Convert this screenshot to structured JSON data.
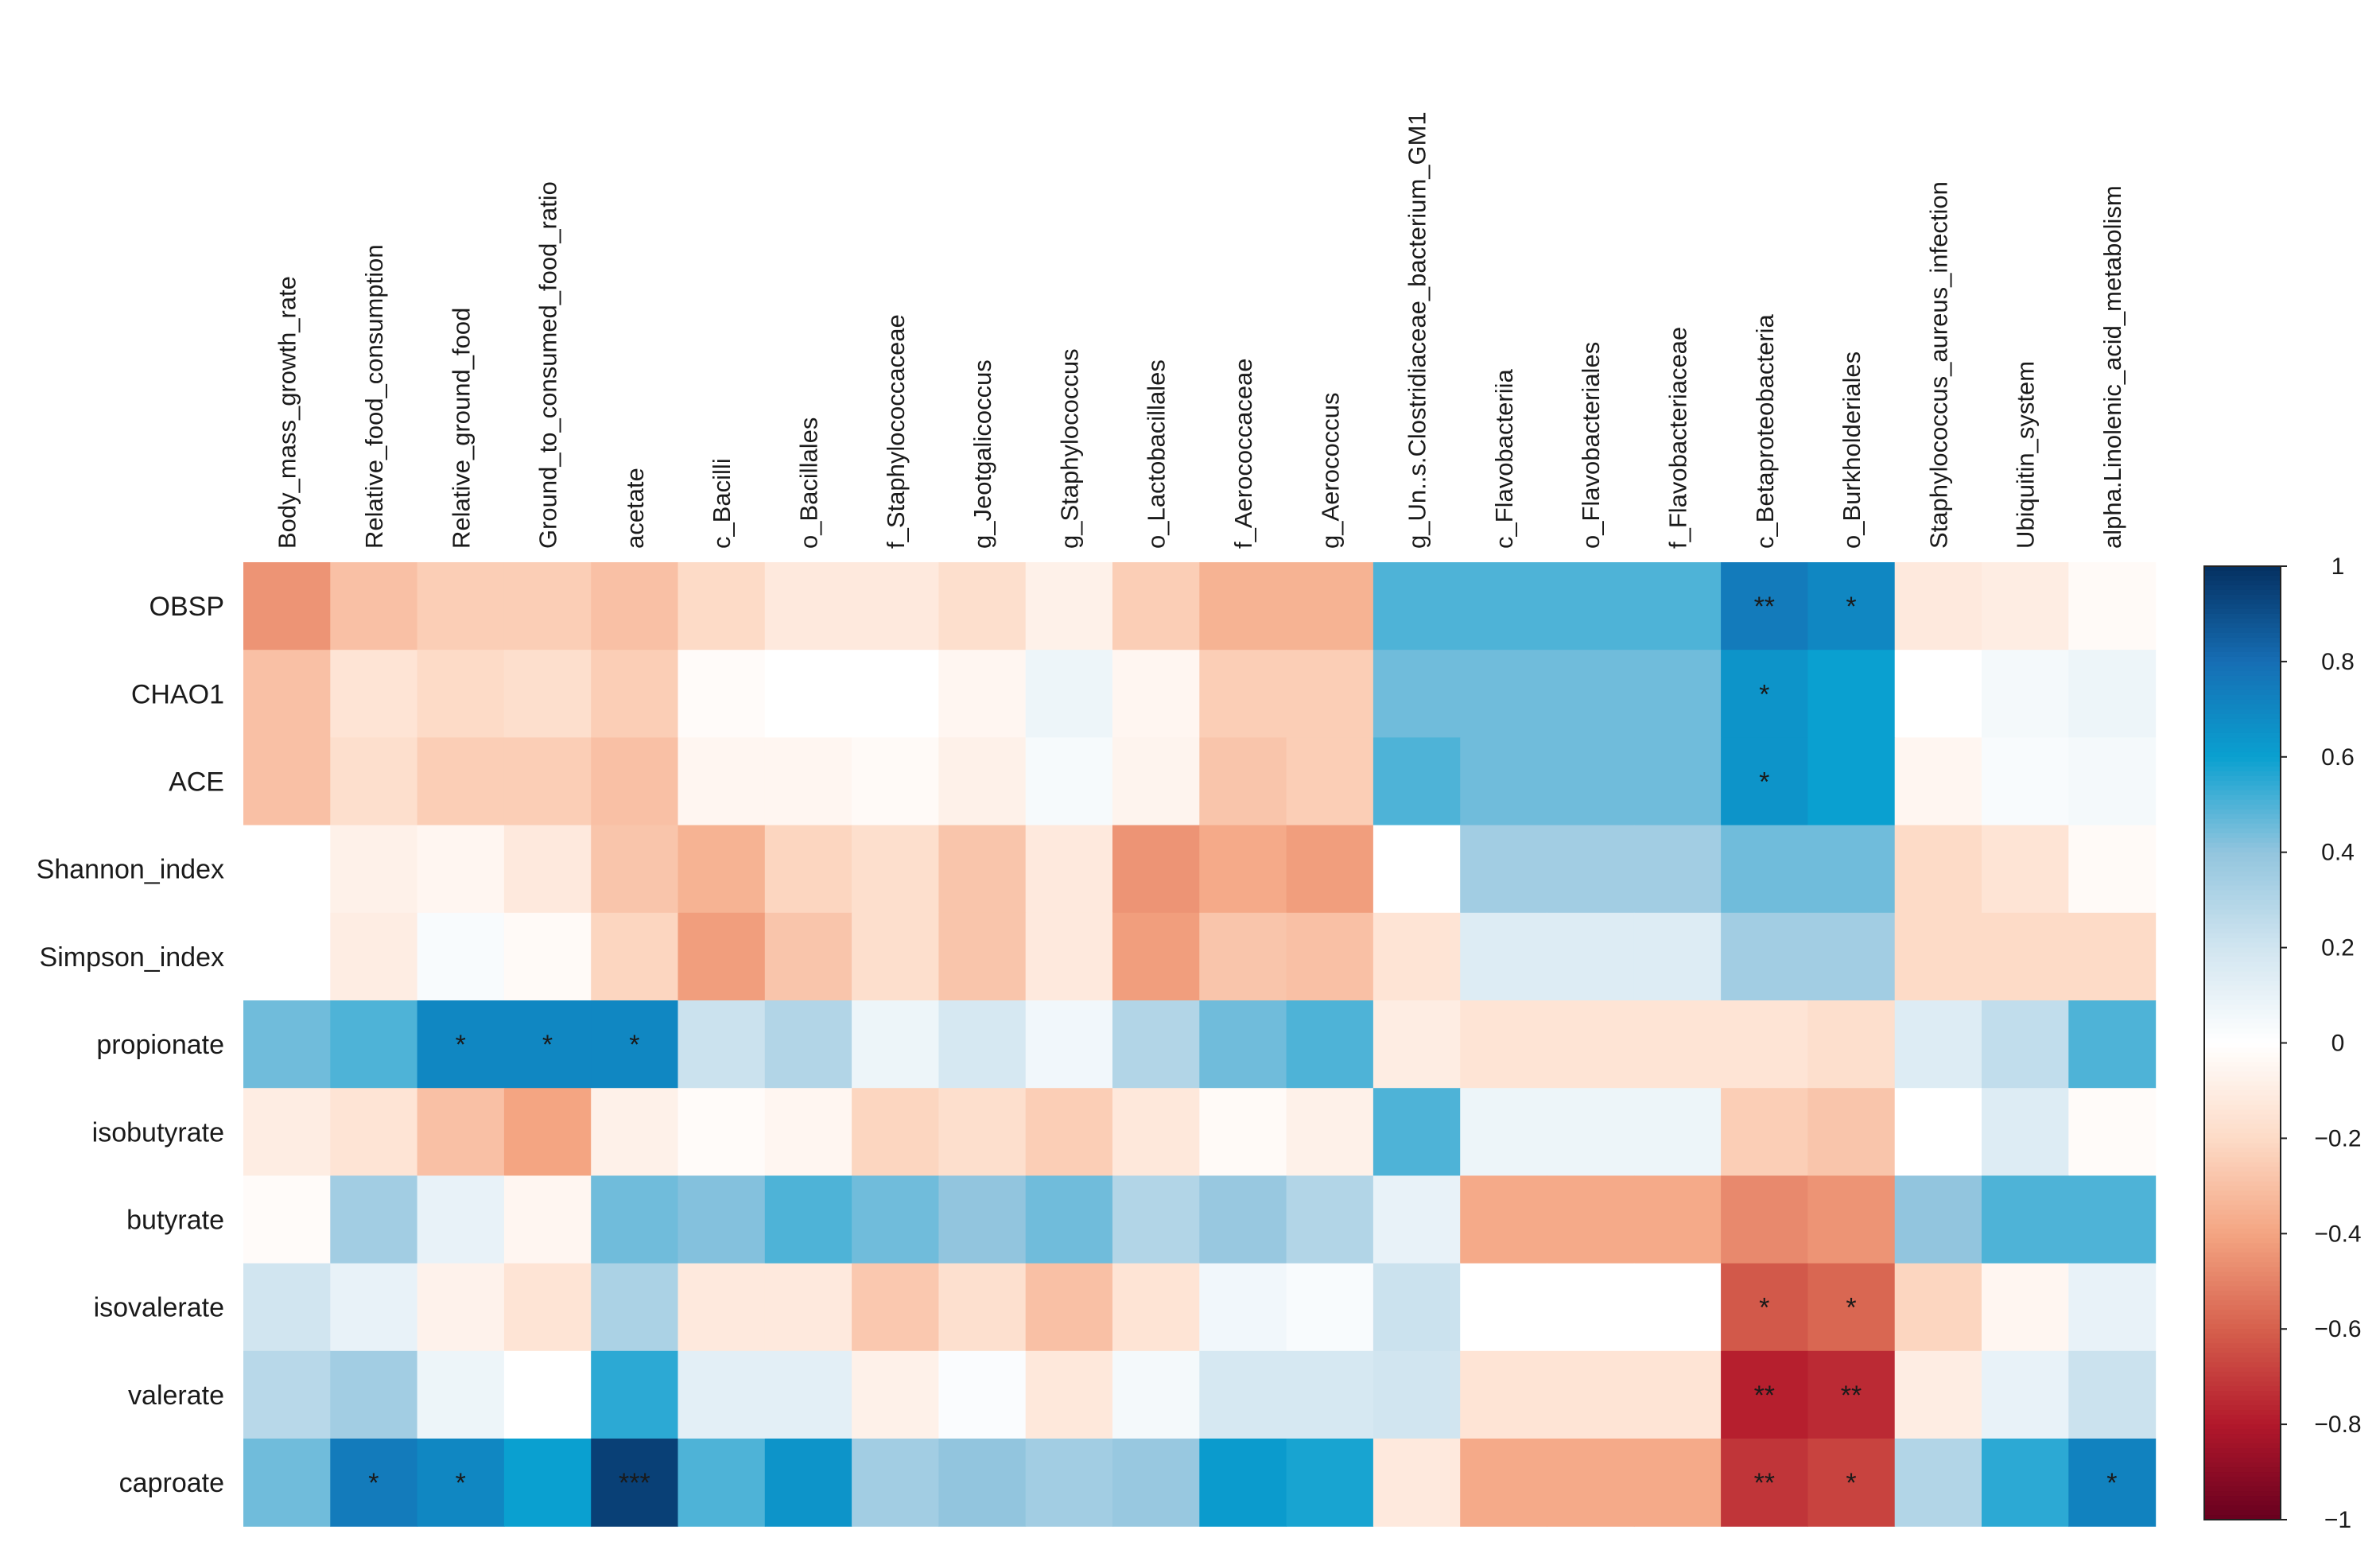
{
  "chart_data": {
    "type": "heatmap",
    "title": "",
    "columns": [
      "Body_mass_growth_rate",
      "Relative_food_consumption",
      "Relative_ground_food",
      "Ground_to_consumed_food_ratio",
      "acetate",
      "c_Bacilli",
      "o_Bacillales",
      "f_Staphylococcaceae",
      "g_Jeotgalicoccus",
      "g_Staphylococcus",
      "o_Lactobacillales",
      "f_Aerococcaceae",
      "g_Aerococcus",
      "g_Un..s.Clostridiaceae_bacterium_GM1",
      "c_Flavobacteriia",
      "o_Flavobacteriales",
      "f_Flavobacteriaceae",
      "c_Betaproteobacteria",
      "o_Burkholderiales",
      "Staphylococcus_aureus_infection",
      "Ubiquitin_system",
      "alpha.Linolenic_acid_metabolism"
    ],
    "rows": [
      "OBSP",
      "CHAO1",
      "ACE",
      "Shannon_index",
      "Simpson_index",
      "propionate",
      "isobutyrate",
      "butyrate",
      "isovalerate",
      "valerate",
      "caproate"
    ],
    "values": [
      [
        -0.45,
        -0.3,
        -0.25,
        -0.25,
        -0.3,
        -0.2,
        -0.12,
        -0.12,
        -0.18,
        -0.08,
        -0.25,
        -0.35,
        -0.35,
        0.5,
        0.5,
        0.5,
        0.5,
        0.75,
        0.7,
        -0.12,
        -0.1,
        -0.03
      ],
      [
        -0.3,
        -0.15,
        -0.2,
        -0.18,
        -0.25,
        -0.02,
        0.0,
        0.0,
        -0.05,
        0.08,
        -0.05,
        -0.25,
        -0.25,
        0.45,
        0.45,
        0.45,
        0.45,
        0.65,
        0.6,
        0.0,
        0.05,
        0.08
      ],
      [
        -0.3,
        -0.18,
        -0.25,
        -0.25,
        -0.3,
        -0.05,
        -0.05,
        -0.03,
        -0.08,
        0.04,
        -0.06,
        -0.28,
        -0.25,
        0.5,
        0.45,
        0.45,
        0.45,
        0.65,
        0.6,
        -0.05,
        0.03,
        0.05
      ],
      [
        0.0,
        -0.08,
        -0.05,
        -0.12,
        -0.28,
        -0.35,
        -0.22,
        -0.18,
        -0.28,
        -0.12,
        -0.45,
        -0.38,
        -0.42,
        0.0,
        0.35,
        0.35,
        0.35,
        0.45,
        0.45,
        -0.2,
        -0.15,
        -0.03
      ],
      [
        0.0,
        -0.1,
        0.03,
        -0.03,
        -0.22,
        -0.42,
        -0.28,
        -0.18,
        -0.28,
        -0.12,
        -0.42,
        -0.28,
        -0.3,
        -0.15,
        0.15,
        0.15,
        0.15,
        0.35,
        0.35,
        -0.2,
        -0.2,
        -0.2
      ],
      [
        0.45,
        0.5,
        0.7,
        0.7,
        0.7,
        0.22,
        0.3,
        0.08,
        0.18,
        0.06,
        0.3,
        0.45,
        0.5,
        -0.1,
        -0.15,
        -0.15,
        -0.15,
        -0.15,
        -0.18,
        0.15,
        0.25,
        0.5
      ],
      [
        -0.1,
        -0.15,
        -0.3,
        -0.4,
        -0.08,
        -0.02,
        -0.05,
        -0.22,
        -0.18,
        -0.25,
        -0.13,
        -0.03,
        -0.08,
        0.5,
        0.08,
        0.08,
        0.08,
        -0.25,
        -0.28,
        0.0,
        0.15,
        -0.02
      ],
      [
        -0.02,
        0.35,
        0.1,
        -0.05,
        0.45,
        0.42,
        0.5,
        0.45,
        0.4,
        0.45,
        0.3,
        0.38,
        0.3,
        0.1,
        -0.38,
        -0.38,
        -0.38,
        -0.48,
        -0.45,
        0.4,
        0.5,
        0.5
      ],
      [
        0.2,
        0.1,
        -0.07,
        -0.15,
        0.32,
        -0.12,
        -0.12,
        -0.27,
        -0.17,
        -0.3,
        -0.15,
        0.06,
        0.03,
        0.22,
        0.0,
        0.0,
        0.0,
        -0.62,
        -0.58,
        -0.22,
        -0.05,
        0.1
      ],
      [
        0.28,
        0.35,
        0.08,
        0.0,
        0.55,
        0.12,
        0.12,
        -0.08,
        0.02,
        -0.13,
        0.05,
        0.18,
        0.18,
        0.2,
        -0.15,
        -0.15,
        -0.15,
        -0.78,
        -0.75,
        -0.1,
        0.1,
        0.22
      ],
      [
        0.45,
        0.75,
        0.7,
        0.6,
        0.95,
        0.5,
        0.65,
        0.35,
        0.4,
        0.35,
        0.38,
        0.62,
        0.58,
        -0.12,
        -0.38,
        -0.38,
        -0.38,
        -0.72,
        -0.68,
        0.3,
        0.55,
        0.72
      ]
    ],
    "significance": [
      [
        "",
        "",
        "",
        "",
        "",
        "",
        "",
        "",
        "",
        "",
        "",
        "",
        "",
        "",
        "",
        "",
        "",
        "**",
        "*",
        "",
        "",
        ""
      ],
      [
        "",
        "",
        "",
        "",
        "",
        "",
        "",
        "",
        "",
        "",
        "",
        "",
        "",
        "",
        "",
        "",
        "",
        "*",
        "",
        "",
        "",
        ""
      ],
      [
        "",
        "",
        "",
        "",
        "",
        "",
        "",
        "",
        "",
        "",
        "",
        "",
        "",
        "",
        "",
        "",
        "",
        "*",
        "",
        "",
        "",
        ""
      ],
      [
        "",
        "",
        "",
        "",
        "",
        "",
        "",
        "",
        "",
        "",
        "",
        "",
        "",
        "",
        "",
        "",
        "",
        "",
        "",
        "",
        "",
        ""
      ],
      [
        "",
        "",
        "",
        "",
        "",
        "",
        "",
        "",
        "",
        "",
        "",
        "",
        "",
        "",
        "",
        "",
        "",
        "",
        "",
        "",
        "",
        ""
      ],
      [
        "",
        "",
        "*",
        "*",
        "*",
        "",
        "",
        "",
        "",
        "",
        "",
        "",
        "",
        "",
        "",
        "",
        "",
        "",
        "",
        "",
        "",
        ""
      ],
      [
        "",
        "",
        "",
        "",
        "",
        "",
        "",
        "",
        "",
        "",
        "",
        "",
        "",
        "",
        "",
        "",
        "",
        "",
        "",
        "",
        "",
        ""
      ],
      [
        "",
        "",
        "",
        "",
        "",
        "",
        "",
        "",
        "",
        "",
        "",
        "",
        "",
        "",
        "",
        "",
        "",
        "",
        "",
        "",
        "",
        ""
      ],
      [
        "",
        "",
        "",
        "",
        "",
        "",
        "",
        "",
        "",
        "",
        "",
        "",
        "",
        "",
        "",
        "",
        "",
        "*",
        "*",
        "",
        "",
        ""
      ],
      [
        "",
        "",
        "",
        "",
        "",
        "",
        "",
        "",
        "",
        "",
        "",
        "",
        "",
        "",
        "",
        "",
        "",
        "**",
        "**",
        "",
        "",
        ""
      ],
      [
        "",
        "*",
        "*",
        "",
        "***",
        "",
        "",
        "",
        "",
        "",
        "",
        "",
        "",
        "",
        "",
        "",
        "",
        "**",
        "*",
        "",
        "",
        "*"
      ]
    ],
    "colorbar": {
      "range": [
        -1,
        1
      ],
      "ticks": [
        "1",
        "0.8",
        "0.6",
        "0.4",
        "0.2",
        "0",
        "−0.2",
        "−0.4",
        "−0.6",
        "−0.8",
        "−1"
      ],
      "colors": {
        "strong_negative": "#67001f",
        "negative": "#d6604d",
        "light_negative": "#f4a582",
        "faint_negative": "#fddbc7",
        "zero": "#ffffff",
        "faint_positive": "#d1e5f0",
        "light_positive": "#92c5de",
        "positive": "#4393c3",
        "mid_positive": "#0aa0d0",
        "strong_positive": "#053061"
      }
    }
  }
}
